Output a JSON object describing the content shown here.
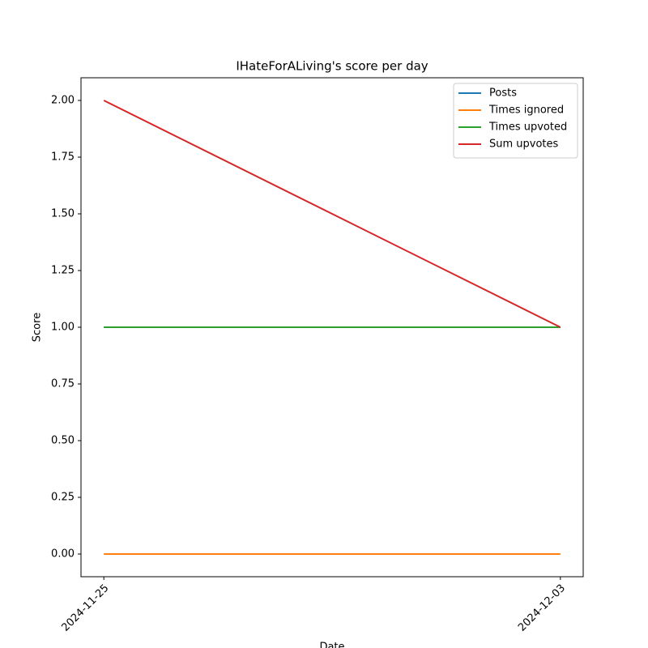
{
  "chart_data": {
    "type": "line",
    "title": "IHateForALiving's score per day",
    "x_label": "Date",
    "y_label": "Score",
    "categories": [
      "2024-11-25",
      "2024-12-03"
    ],
    "series": [
      {
        "name": "Posts",
        "color": "#1f77b4",
        "values": [
          1,
          1
        ]
      },
      {
        "name": "Times ignored",
        "color": "#ff7f0e",
        "values": [
          0,
          0
        ]
      },
      {
        "name": "Times upvoted",
        "color": "#2ca02c",
        "values": [
          1,
          1
        ]
      },
      {
        "name": "Sum upvotes",
        "color": "#d62728",
        "values": [
          2,
          1
        ]
      }
    ],
    "ylim": [
      -0.1,
      2.1
    ],
    "yticks": [
      {
        "value": 0,
        "label": "0.00"
      },
      {
        "value": 0.25,
        "label": "0.25"
      },
      {
        "value": 0.5,
        "label": "0.50"
      },
      {
        "value": 0.75,
        "label": "0.75"
      },
      {
        "value": 1,
        "label": "1.00"
      },
      {
        "value": 1.25,
        "label": "1.25"
      },
      {
        "value": 1.5,
        "label": "1.50"
      },
      {
        "value": 1.75,
        "label": "1.75"
      },
      {
        "value": 2,
        "label": "2.00"
      }
    ],
    "grid": false,
    "legend": "upper right"
  }
}
